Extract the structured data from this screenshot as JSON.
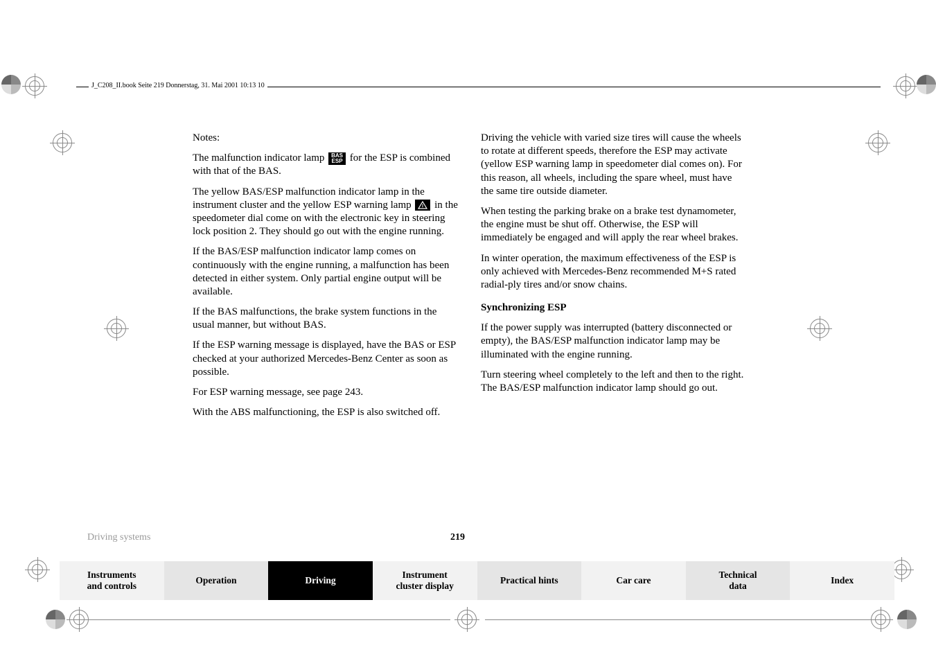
{
  "header": "J_C208_II.book  Seite 219  Donnerstag, 31. Mai 2001  10:13 10",
  "left": {
    "notes": "Notes:",
    "p1a": "The malfunction indicator lamp ",
    "p1b": " for the ESP is combined with that of the BAS.",
    "p2a": "The yellow BAS/ESP malfunction indicator lamp in the instrument cluster and the yellow ESP warning lamp ",
    "p2b": " in the speedometer dial come on with the electronic key in steering lock position 2. They should go out with the engine running.",
    "p3": "If the BAS/ESP malfunction indicator lamp comes on continuously with the engine running, a malfunction has been detected in either system. Only partial engine output will be available.",
    "p4": "If the BAS malfunctions, the brake system functions in the usual manner, but without BAS.",
    "p5": "If the ESP warning message is displayed, have the BAS or ESP checked at your authorized Mercedes-Benz Center as soon as possible.",
    "p6": "For ESP warning message, see page 243.",
    "p7": "With the ABS malfunctioning, the ESP is also switched off."
  },
  "right": {
    "p1": "Driving the vehicle with varied size tires will cause the wheels to rotate at different speeds, therefore the ESP may activate (yellow ESP warning lamp in speedometer dial comes on). For this reason, all wheels, including the spare wheel, must have the same tire outside diameter.",
    "p2": "When testing the parking brake on a brake test dynamometer, the engine must be shut off. Otherwise, the ESP will immediately be engaged and will apply the rear wheel brakes.",
    "p3": "In winter operation, the maximum effectiveness of the ESP is only achieved with Mercedes-Benz recommended M+S rated radial-ply tires and/or snow chains.",
    "h": "Synchronizing ESP",
    "p4": "If the power supply was interrupted (battery disconnected or empty), the BAS/ESP malfunction indicator lamp may be illuminated with the engine running.",
    "p5": "Turn steering wheel completely to the left and then to the right. The BAS/ESP malfunction indicator lamp should go out."
  },
  "icons": {
    "basesp_top": "BAS",
    "basesp_bot": "ESP"
  },
  "footer": {
    "section": "Driving systems",
    "page": "219",
    "tabs": [
      "Instruments and controls",
      "Operation",
      "Driving",
      "Instrument cluster display",
      "Practical hints",
      "Car care",
      "Technical data",
      "Index"
    ]
  },
  "colors": {
    "tab_bg": "#e5e5e5",
    "tab_light": "#f2f2f2",
    "tab_active_bg": "#000000",
    "tab_active_fg": "#ffffff",
    "section_gray": "#999999"
  }
}
